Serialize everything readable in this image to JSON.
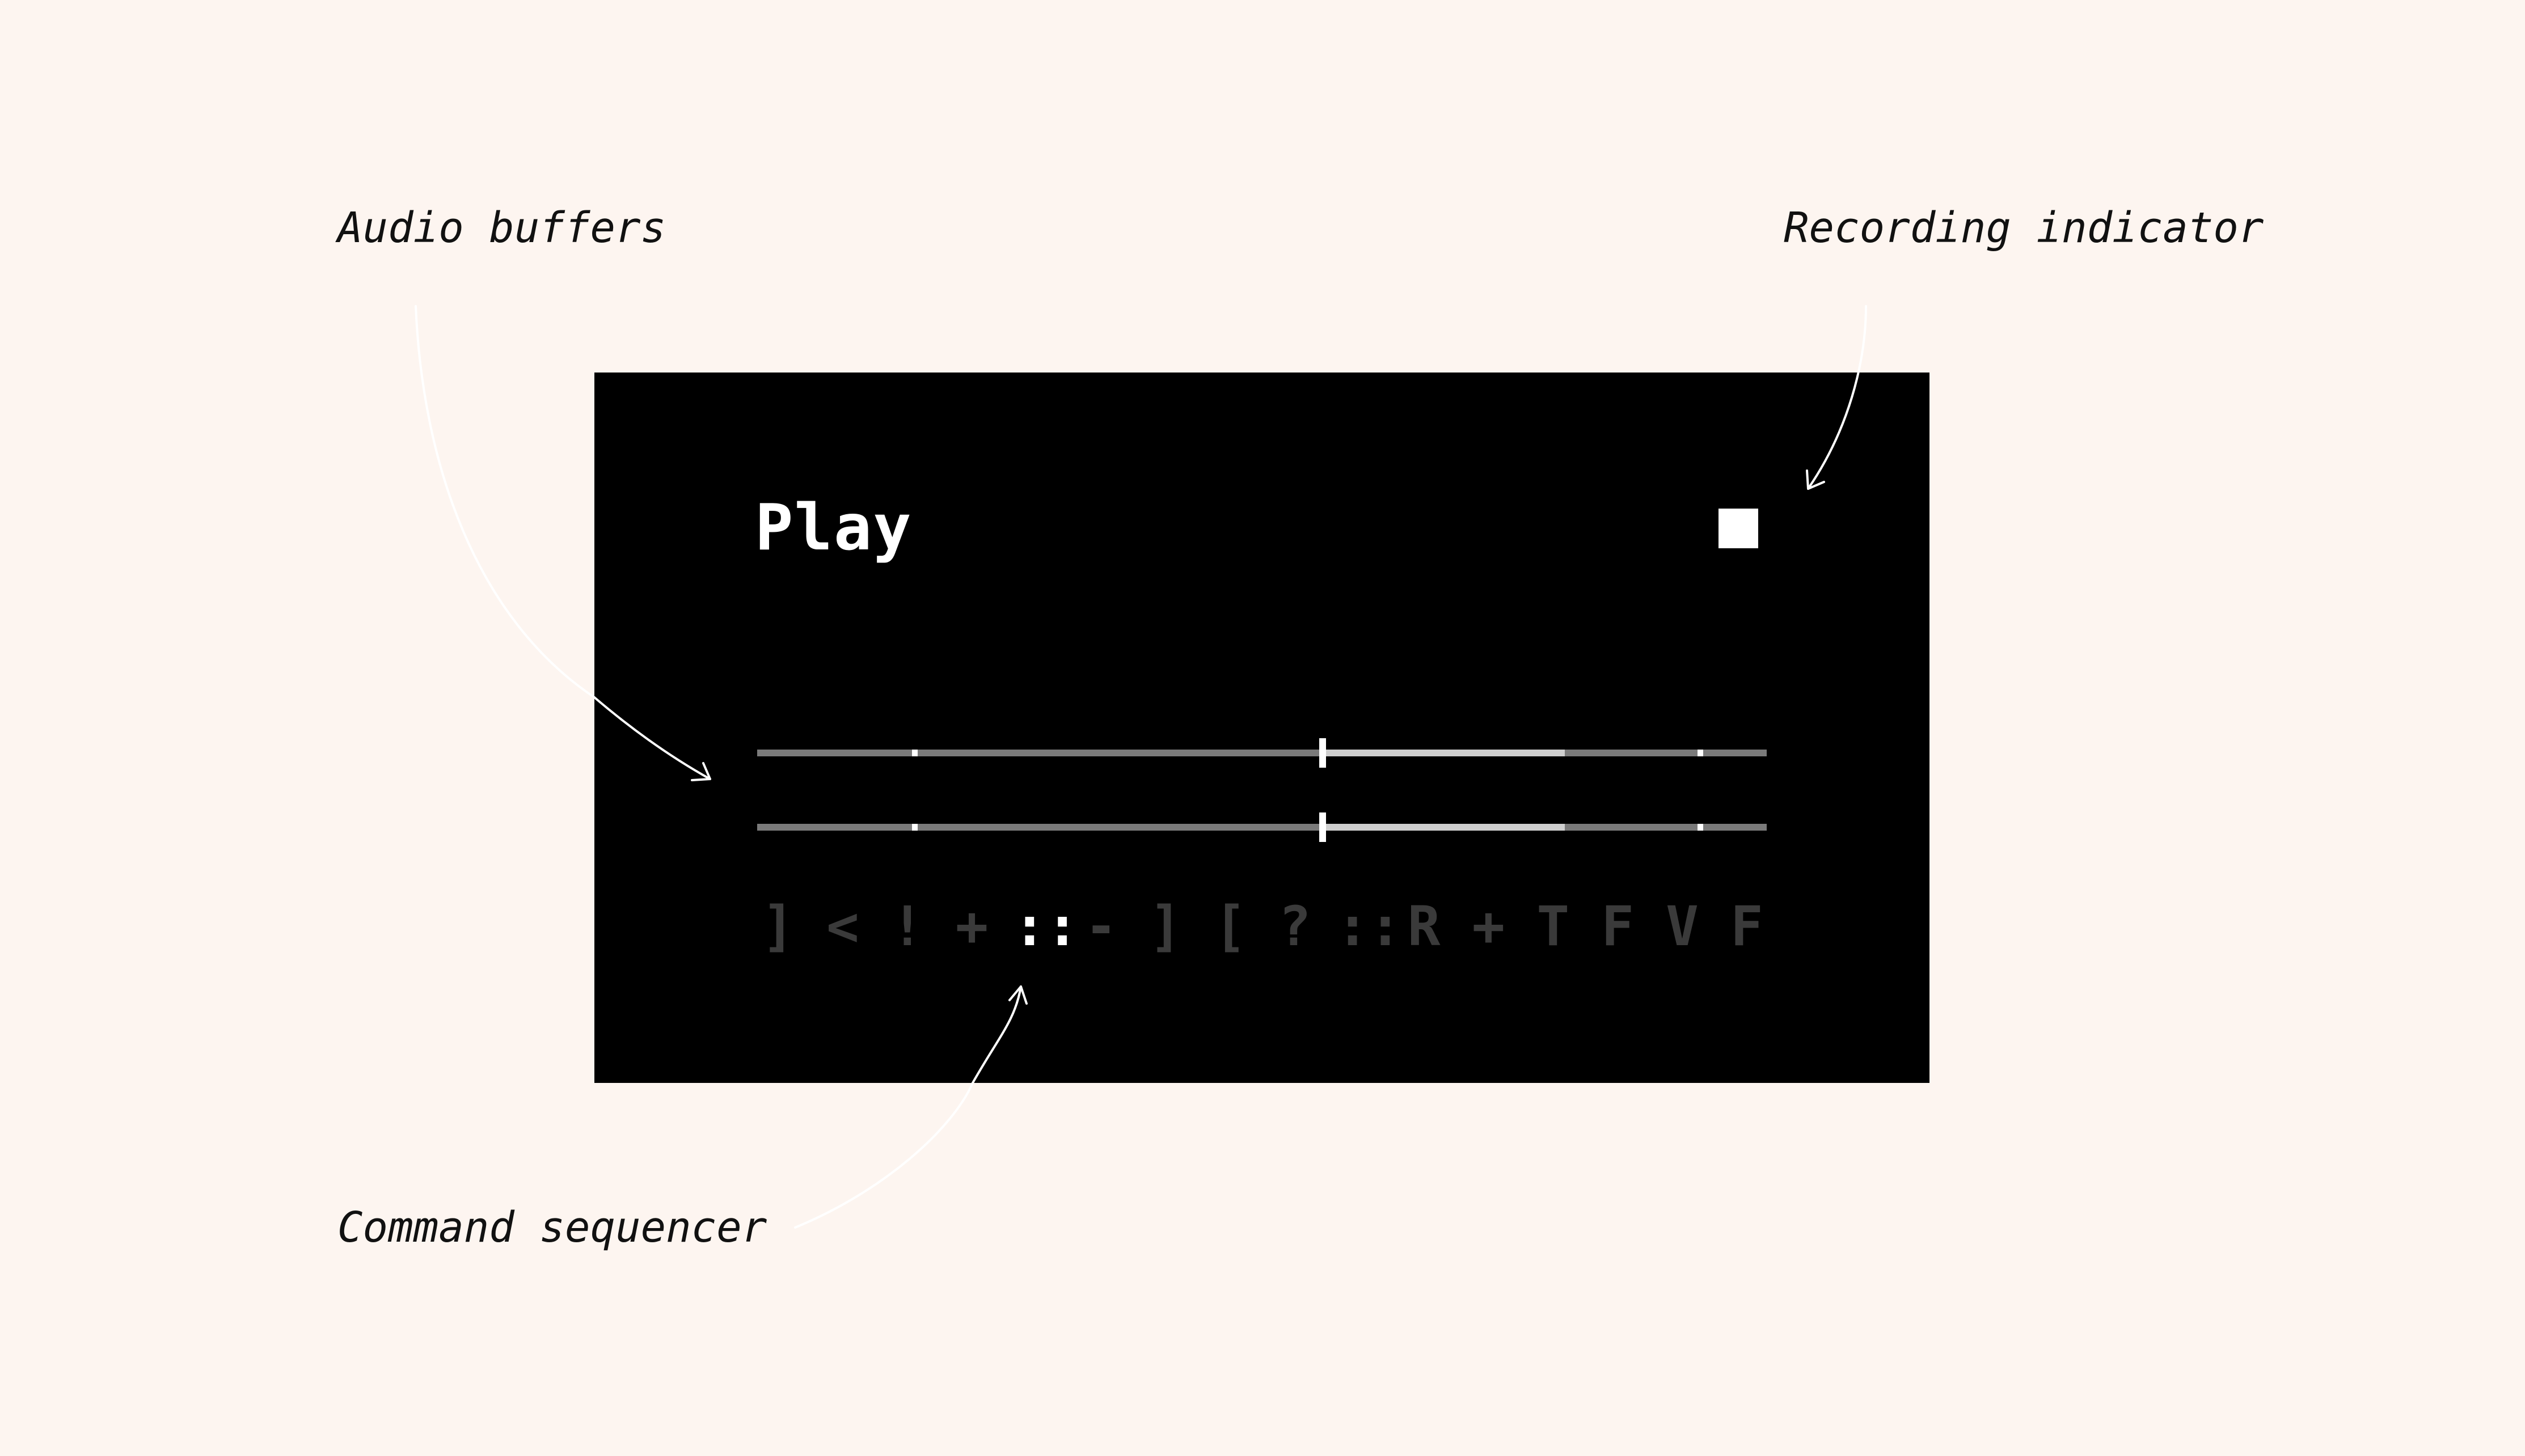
{
  "annotations": {
    "audio_buffers": "Audio buffers",
    "recording_indicator": "Recording indicator",
    "command_sequencer": "Command sequencer"
  },
  "screen": {
    "title": "Play",
    "recording": true,
    "buffers": [
      {
        "loop_start": 0.56,
        "loop_end": 0.8,
        "playhead": 0.56,
        "markers": [
          0.156,
          0.934
        ]
      },
      {
        "loop_start": 0.56,
        "loop_end": 0.8,
        "playhead": 0.56,
        "markers": [
          0.156,
          0.934
        ]
      }
    ],
    "sequencer": {
      "commands": [
        "]",
        "<",
        "!",
        "+",
        "::",
        "-",
        "]",
        "[",
        "?",
        "::",
        "R",
        "+",
        "T",
        "F",
        "V",
        "F"
      ],
      "active_index": 4
    }
  },
  "colors": {
    "background": "#fdf5f0",
    "screen": "#000000",
    "foreground": "#ffffff",
    "track": "#7a7a7a",
    "loop_region": "#cfcfcf",
    "inactive_command": "#3a3a3a"
  }
}
